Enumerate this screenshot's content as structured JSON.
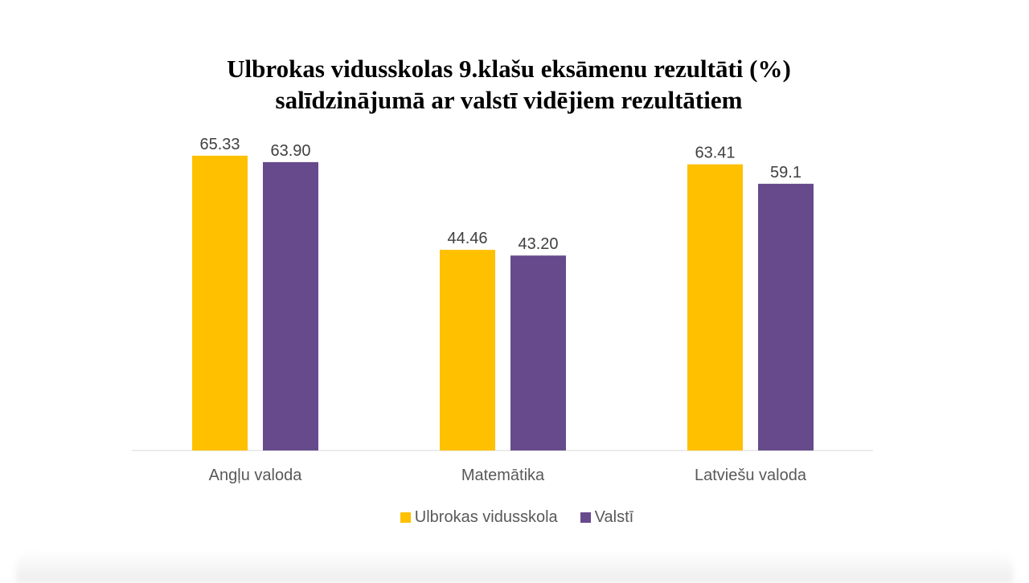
{
  "chart_data": {
    "type": "bar",
    "title_line1": "Ulbrokas vidusskolas 9.klašu eksāmenu rezultāti (%)",
    "title_line2": "salīdzinājumā ar valstī vidējiem rezultātiem",
    "categories": [
      "Angļu valoda",
      "Matemātika",
      "Latviešu valoda"
    ],
    "series": [
      {
        "name": "Ulbrokas vidusskola",
        "color": "#FFC000",
        "values": [
          65.33,
          44.46,
          63.41
        ],
        "labels": [
          "65.33",
          "44.46",
          "63.41"
        ]
      },
      {
        "name": "Valstī",
        "color": "#674A8C",
        "values": [
          63.9,
          43.2,
          59.1
        ],
        "labels": [
          "63.90",
          "43.20",
          "59.1"
        ]
      }
    ],
    "xlabel": "",
    "ylabel": "",
    "ylim": [
      0,
      70
    ],
    "grid": false,
    "legend_position": "bottom"
  }
}
